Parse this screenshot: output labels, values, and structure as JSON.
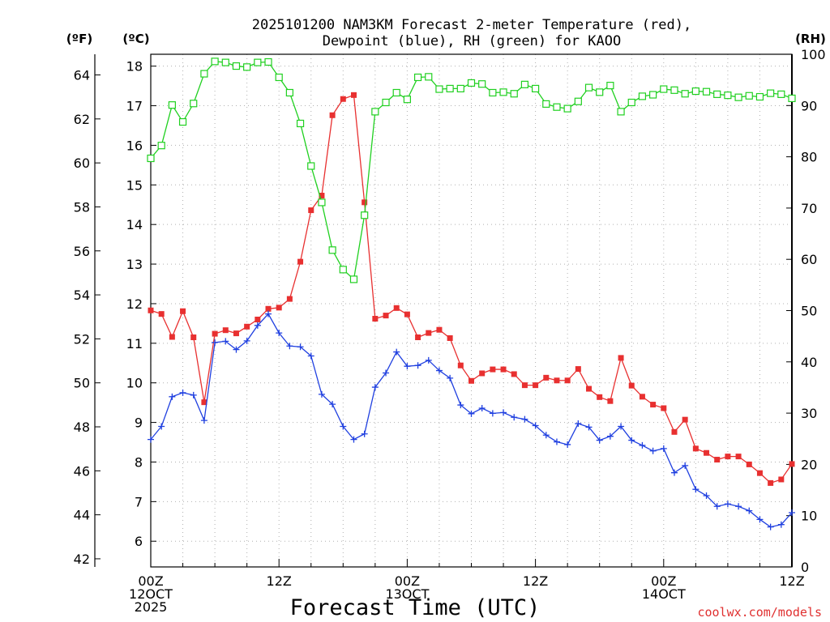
{
  "chart_data": {
    "type": "line",
    "title_line1": "2025101200 NAM3KM Forecast 2-meter Temperature (red),",
    "title_line2": "Dewpoint (blue), RH (green) for KAOO",
    "xlabel": "Forecast Time (UTC)",
    "credit": "coolwx.com/models",
    "left_outer_unit": "(ºF)",
    "left_inner_unit": "(ºC)",
    "right_unit": "(RH)",
    "fahrenheit_ticks": [
      "42",
      "44",
      "46",
      "48",
      "50",
      "52",
      "54",
      "56",
      "58",
      "60",
      "62",
      "64"
    ],
    "celsius_ticks": [
      "6",
      "7",
      "8",
      "9",
      "10",
      "11",
      "12",
      "13",
      "14",
      "15",
      "16",
      "17",
      "18"
    ],
    "rh_ticks": [
      "0",
      "10",
      "20",
      "30",
      "40",
      "50",
      "60",
      "70",
      "80",
      "90",
      "100"
    ],
    "x_tick_labels": [
      {
        "hour": 0,
        "lines": [
          "00Z",
          "12OCT",
          "2025"
        ]
      },
      {
        "hour": 12,
        "lines": [
          "12Z"
        ]
      },
      {
        "hour": 24,
        "lines": [
          "00Z",
          "13OCT"
        ]
      },
      {
        "hour": 36,
        "lines": [
          "12Z"
        ]
      },
      {
        "hour": 48,
        "lines": [
          "00Z",
          "14OCT"
        ]
      },
      {
        "hour": 60,
        "lines": [
          "12Z"
        ]
      }
    ],
    "x_range_hours": [
      0,
      60
    ],
    "celsius_range": [
      5.35,
      18.3
    ],
    "rh_range": [
      0,
      100
    ],
    "series": [
      {
        "name": "Temperature",
        "unit": "C",
        "color": "#e83030",
        "marker": "filled-square",
        "values": [
          11.83,
          11.74,
          11.16,
          11.81,
          11.15,
          9.51,
          11.24,
          11.33,
          11.25,
          11.42,
          11.6,
          11.87,
          11.9,
          12.12,
          13.06,
          14.36,
          14.73,
          16.76,
          17.17,
          17.27,
          14.56,
          11.62,
          11.7,
          11.89,
          11.73,
          11.15,
          11.26,
          11.34,
          11.13,
          10.44,
          10.05,
          10.24,
          10.34,
          10.34,
          10.22,
          9.94,
          9.94,
          10.13,
          10.06,
          10.06,
          10.35,
          9.85,
          9.64,
          9.54,
          10.63,
          9.93,
          9.65,
          9.45,
          9.36,
          8.76,
          9.07,
          8.34,
          8.23,
          8.06,
          8.14,
          8.14,
          7.94,
          7.72,
          7.47,
          7.56,
          7.95
        ]
      },
      {
        "name": "Dewpoint",
        "unit": "C",
        "color": "#2040e0",
        "marker": "plus",
        "values": [
          8.57,
          8.9,
          9.65,
          9.75,
          9.69,
          9.05,
          11.02,
          11.05,
          10.84,
          11.06,
          11.45,
          11.74,
          11.26,
          10.93,
          10.91,
          10.68,
          9.71,
          9.46,
          8.9,
          8.57,
          8.71,
          9.89,
          10.25,
          10.78,
          10.42,
          10.44,
          10.57,
          10.31,
          10.12,
          9.44,
          9.22,
          9.36,
          9.23,
          9.25,
          9.13,
          9.08,
          8.92,
          8.68,
          8.51,
          8.44,
          8.97,
          8.88,
          8.55,
          8.65,
          8.9,
          8.55,
          8.42,
          8.28,
          8.34,
          7.73,
          7.91,
          7.31,
          7.15,
          6.88,
          6.94,
          6.88,
          6.77,
          6.55,
          6.36,
          6.42,
          6.72
        ]
      },
      {
        "name": "RH",
        "unit": "%",
        "color": "#20d020",
        "marker": "open-square",
        "values": [
          79.7,
          82.2,
          90.1,
          86.8,
          90.4,
          96.2,
          98.6,
          98.4,
          97.7,
          97.5,
          98.4,
          98.5,
          95.5,
          92.5,
          86.5,
          78.2,
          71.1,
          61.8,
          58.0,
          56.1,
          68.6,
          88.8,
          90.6,
          92.5,
          91.2,
          95.5,
          95.6,
          93.2,
          93.3,
          93.3,
          94.4,
          94.2,
          92.5,
          92.6,
          92.3,
          94.1,
          93.3,
          90.3,
          89.7,
          89.4,
          90.8,
          93.5,
          92.6,
          93.9,
          88.8,
          90.6,
          91.8,
          92.1,
          93.2,
          93.0,
          92.3,
          92.8,
          92.7,
          92.2,
          92.0,
          91.6,
          91.9,
          91.7,
          92.4,
          92.2,
          91.4
        ]
      }
    ]
  }
}
